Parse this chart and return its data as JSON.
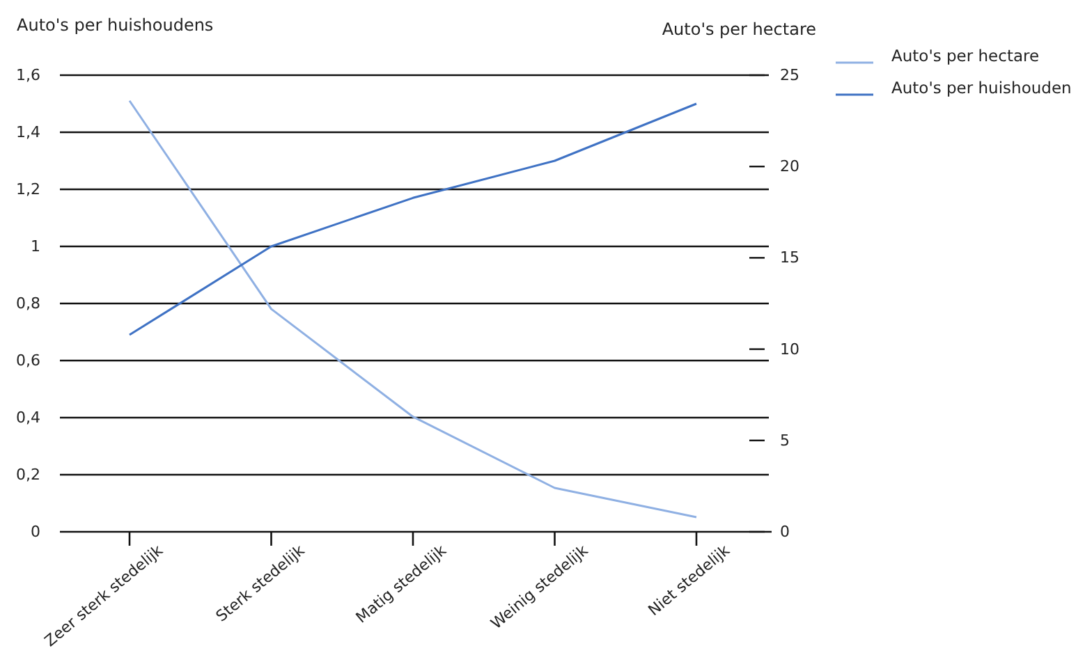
{
  "chart_data": {
    "type": "line",
    "ylabel": "Auto's per huishoudens",
    "y2label": "Auto's per hectare",
    "categories": [
      "Zeer sterk stedelijk",
      "Sterk stedelijk",
      "Matig stedelijk",
      "Weinig stedelijk",
      "Niet stedelijk"
    ],
    "series": [
      {
        "name": "Auto's per hectare",
        "color": "#8fb0e3",
        "axis": "y2",
        "values": [
          23.6,
          12.2,
          6.3,
          2.4,
          0.8
        ]
      },
      {
        "name": "Auto's per huishouden",
        "color": "#3f72c4",
        "values": [
          0.69,
          1.0,
          1.17,
          1.3,
          1.5
        ]
      }
    ],
    "ylim": [
      0,
      1.6
    ],
    "yticks": [
      0,
      {
        "value": 0.2,
        "label": "0,2"
      },
      {
        "value": 0.4,
        "label": "0,4"
      },
      {
        "value": 0.6,
        "label": "0,6"
      },
      {
        "value": 0.8,
        "label": "0,8"
      },
      1,
      {
        "value": 1.2,
        "label": "1,2"
      },
      {
        "value": 1.4,
        "label": "1,4"
      },
      {
        "value": 1.6,
        "label": "1,6"
      }
    ],
    "y2lim": [
      0,
      25
    ],
    "y2ticks": [
      0,
      5,
      10,
      15,
      20,
      25
    ],
    "grid": "y",
    "legend": "top right",
    "marker": "none",
    "line_style": "solid"
  }
}
